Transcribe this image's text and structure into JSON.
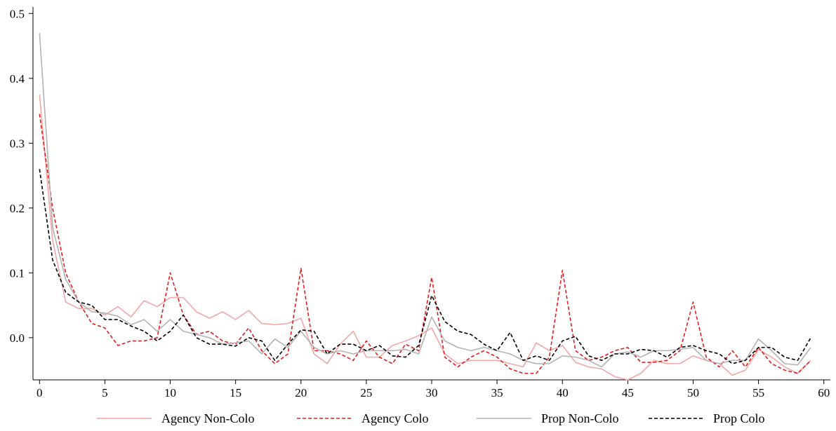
{
  "chart_data": {
    "type": "line",
    "xlim": [
      -0.5,
      60.5
    ],
    "ylim": [
      -0.065,
      0.51
    ],
    "x_ticks": [
      0,
      5,
      10,
      15,
      20,
      25,
      30,
      35,
      40,
      45,
      50,
      55,
      60
    ],
    "y_ticks": [
      0.0,
      0.1,
      0.2,
      0.3,
      0.4,
      0.5
    ],
    "y_tick_labels": [
      "0.0",
      "0.1",
      "0.2",
      "0.3",
      "0.4",
      "0.5"
    ],
    "grid": false,
    "legend_position": "bottom",
    "series": [
      {
        "name": "Agency Non-Colo",
        "color": "#f4a6a6",
        "dash": "solid",
        "values": [
          0.375,
          0.15,
          0.055,
          0.045,
          0.045,
          0.035,
          0.048,
          0.032,
          0.057,
          0.048,
          0.062,
          0.062,
          0.04,
          0.03,
          0.04,
          0.028,
          0.042,
          0.022,
          0.02,
          0.022,
          0.03,
          -0.025,
          -0.04,
          -0.01,
          0.01,
          -0.03,
          -0.03,
          -0.012,
          -0.005,
          0.003,
          0.015,
          -0.025,
          -0.04,
          -0.035,
          -0.035,
          -0.035,
          -0.04,
          -0.045,
          -0.008,
          -0.02,
          -0.012,
          -0.038,
          -0.045,
          -0.048,
          -0.06,
          -0.065,
          -0.055,
          -0.035,
          -0.04,
          -0.04,
          -0.028,
          -0.035,
          -0.04,
          -0.058,
          -0.05,
          -0.018,
          -0.03,
          -0.045,
          -0.055,
          -0.035
        ]
      },
      {
        "name": "Agency Colo",
        "color": "#e81c1c",
        "dash": "dashed",
        "values": [
          0.345,
          0.2,
          0.1,
          0.055,
          0.022,
          0.015,
          -0.012,
          -0.005,
          -0.005,
          0.0,
          0.1,
          0.035,
          0.005,
          0.01,
          -0.005,
          -0.01,
          0.015,
          -0.02,
          -0.04,
          -0.025,
          0.107,
          -0.02,
          -0.02,
          -0.025,
          -0.035,
          -0.005,
          -0.03,
          -0.04,
          -0.01,
          -0.02,
          0.093,
          -0.03,
          -0.045,
          -0.03,
          -0.02,
          -0.03,
          -0.048,
          -0.055,
          -0.055,
          -0.03,
          0.104,
          -0.02,
          -0.035,
          -0.03,
          -0.02,
          -0.015,
          -0.038,
          -0.038,
          -0.035,
          -0.02,
          0.055,
          -0.03,
          -0.045,
          -0.02,
          -0.045,
          -0.015,
          -0.04,
          -0.05,
          -0.055,
          -0.035
        ]
      },
      {
        "name": "Prop Non-Colo",
        "color": "#b3b3b3",
        "dash": "solid",
        "values": [
          0.47,
          0.17,
          0.09,
          0.055,
          0.04,
          0.038,
          0.033,
          0.02,
          0.028,
          0.01,
          0.028,
          0.01,
          0.005,
          0.0,
          -0.01,
          -0.008,
          -0.005,
          -0.025,
          -0.002,
          -0.015,
          0.01,
          -0.015,
          -0.025,
          -0.02,
          -0.025,
          -0.02,
          -0.02,
          -0.02,
          -0.018,
          -0.025,
          0.032,
          -0.005,
          -0.015,
          -0.02,
          -0.015,
          -0.02,
          -0.025,
          -0.035,
          -0.04,
          -0.04,
          -0.028,
          -0.03,
          -0.035,
          -0.045,
          -0.025,
          -0.022,
          -0.03,
          -0.02,
          -0.02,
          -0.018,
          -0.015,
          -0.035,
          -0.04,
          -0.035,
          -0.035,
          -0.002,
          -0.02,
          -0.04,
          -0.042,
          -0.015
        ]
      },
      {
        "name": "Prop Colo",
        "color": "#000000",
        "dash": "dashed",
        "values": [
          0.26,
          0.12,
          0.07,
          0.055,
          0.05,
          0.028,
          0.028,
          0.018,
          0.01,
          -0.005,
          0.01,
          0.035,
          0.0,
          -0.01,
          -0.01,
          -0.013,
          0.0,
          -0.005,
          -0.035,
          -0.01,
          0.012,
          0.01,
          -0.025,
          -0.01,
          -0.01,
          -0.02,
          -0.012,
          -0.028,
          -0.03,
          -0.012,
          0.065,
          0.025,
          0.01,
          0.005,
          -0.01,
          -0.02,
          0.008,
          -0.035,
          -0.028,
          -0.035,
          -0.005,
          0.002,
          -0.028,
          -0.035,
          -0.025,
          -0.025,
          -0.018,
          -0.02,
          -0.03,
          -0.015,
          -0.012,
          -0.02,
          -0.025,
          -0.04,
          -0.035,
          -0.015,
          -0.015,
          -0.03,
          -0.035,
          0.0
        ]
      }
    ]
  }
}
